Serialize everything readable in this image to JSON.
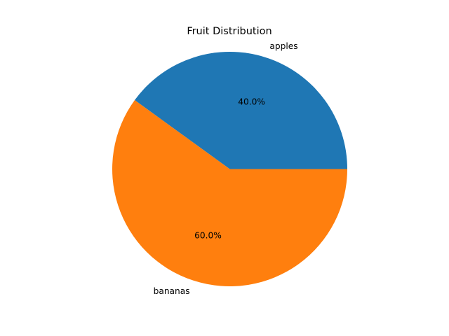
{
  "chart_data": {
    "type": "pie",
    "title": "Fruit Distribution",
    "labels": [
      "apples",
      "bananas"
    ],
    "values": [
      40,
      60
    ],
    "percent_labels": [
      "40.0%",
      "60.0%"
    ],
    "colors": [
      "#1f77b4",
      "#ff7f0e"
    ],
    "start_angle_deg": 0,
    "direction": "counterclockwise",
    "legend": "none"
  }
}
